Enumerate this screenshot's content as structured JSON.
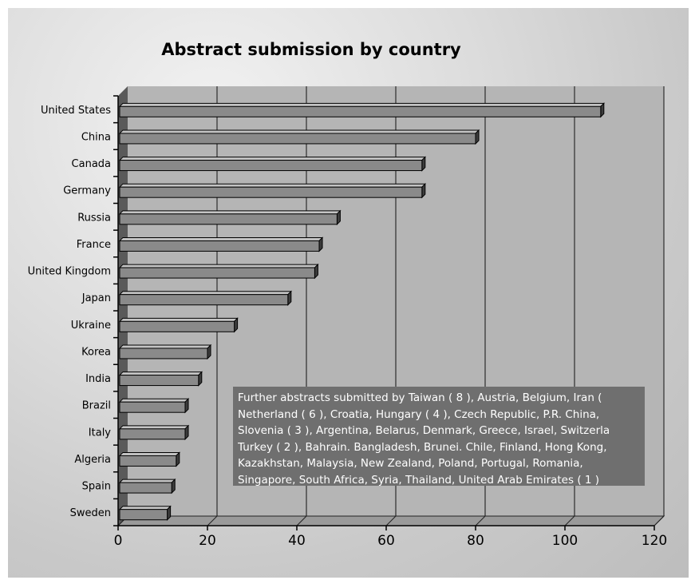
{
  "chart_data": {
    "type": "bar",
    "orientation": "horizontal",
    "title": "Abstract submission by country",
    "categories": [
      "United States",
      "China",
      "Canada",
      "Germany",
      "Russia",
      "France",
      "United Kingdom",
      "Japan",
      "Ukraine",
      "Korea",
      "India",
      "Brazil",
      "Italy",
      "Algeria",
      "Spain",
      "Sweden"
    ],
    "values": [
      108,
      80,
      68,
      68,
      49,
      45,
      44,
      38,
      26,
      20,
      18,
      15,
      15,
      13,
      12,
      11
    ],
    "xlim": [
      0,
      120
    ],
    "xticks": [
      "0",
      "20",
      "40",
      "60",
      "80",
      "100",
      "120"
    ],
    "grid": "vertical",
    "legend": "none"
  },
  "note": {
    "lines": [
      "Further abstracts submitted by Taiwan ( 8 ), Austria, Belgium, Iran (",
      "Netherland ( 6 ), Croatia, Hungary ( 4 ), Czech Republic, P.R. China,",
      "Slovenia ( 3 ), Argentina, Belarus, Denmark, Greece, Israel, Switzerla",
      "Turkey ( 2 ), Bahrain. Bangladesh, Brunei. Chile, Finland, Hong Kong,",
      "Kazakhstan, Malaysia, New Zealand, Poland, Portugal, Romania,",
      "Singapore, South Africa, Syria, Thailand, United Arab Emirates ( 1 )"
    ]
  },
  "colors": {
    "plot_back": "#b5b5b5",
    "plot_side": "#5a5a5a",
    "bar_front": "#8a8a8a",
    "bar_top": "#c4c4c4",
    "bar_side": "#3c3c3c",
    "grid": "#111111",
    "note_back": "#6f6f6f"
  }
}
